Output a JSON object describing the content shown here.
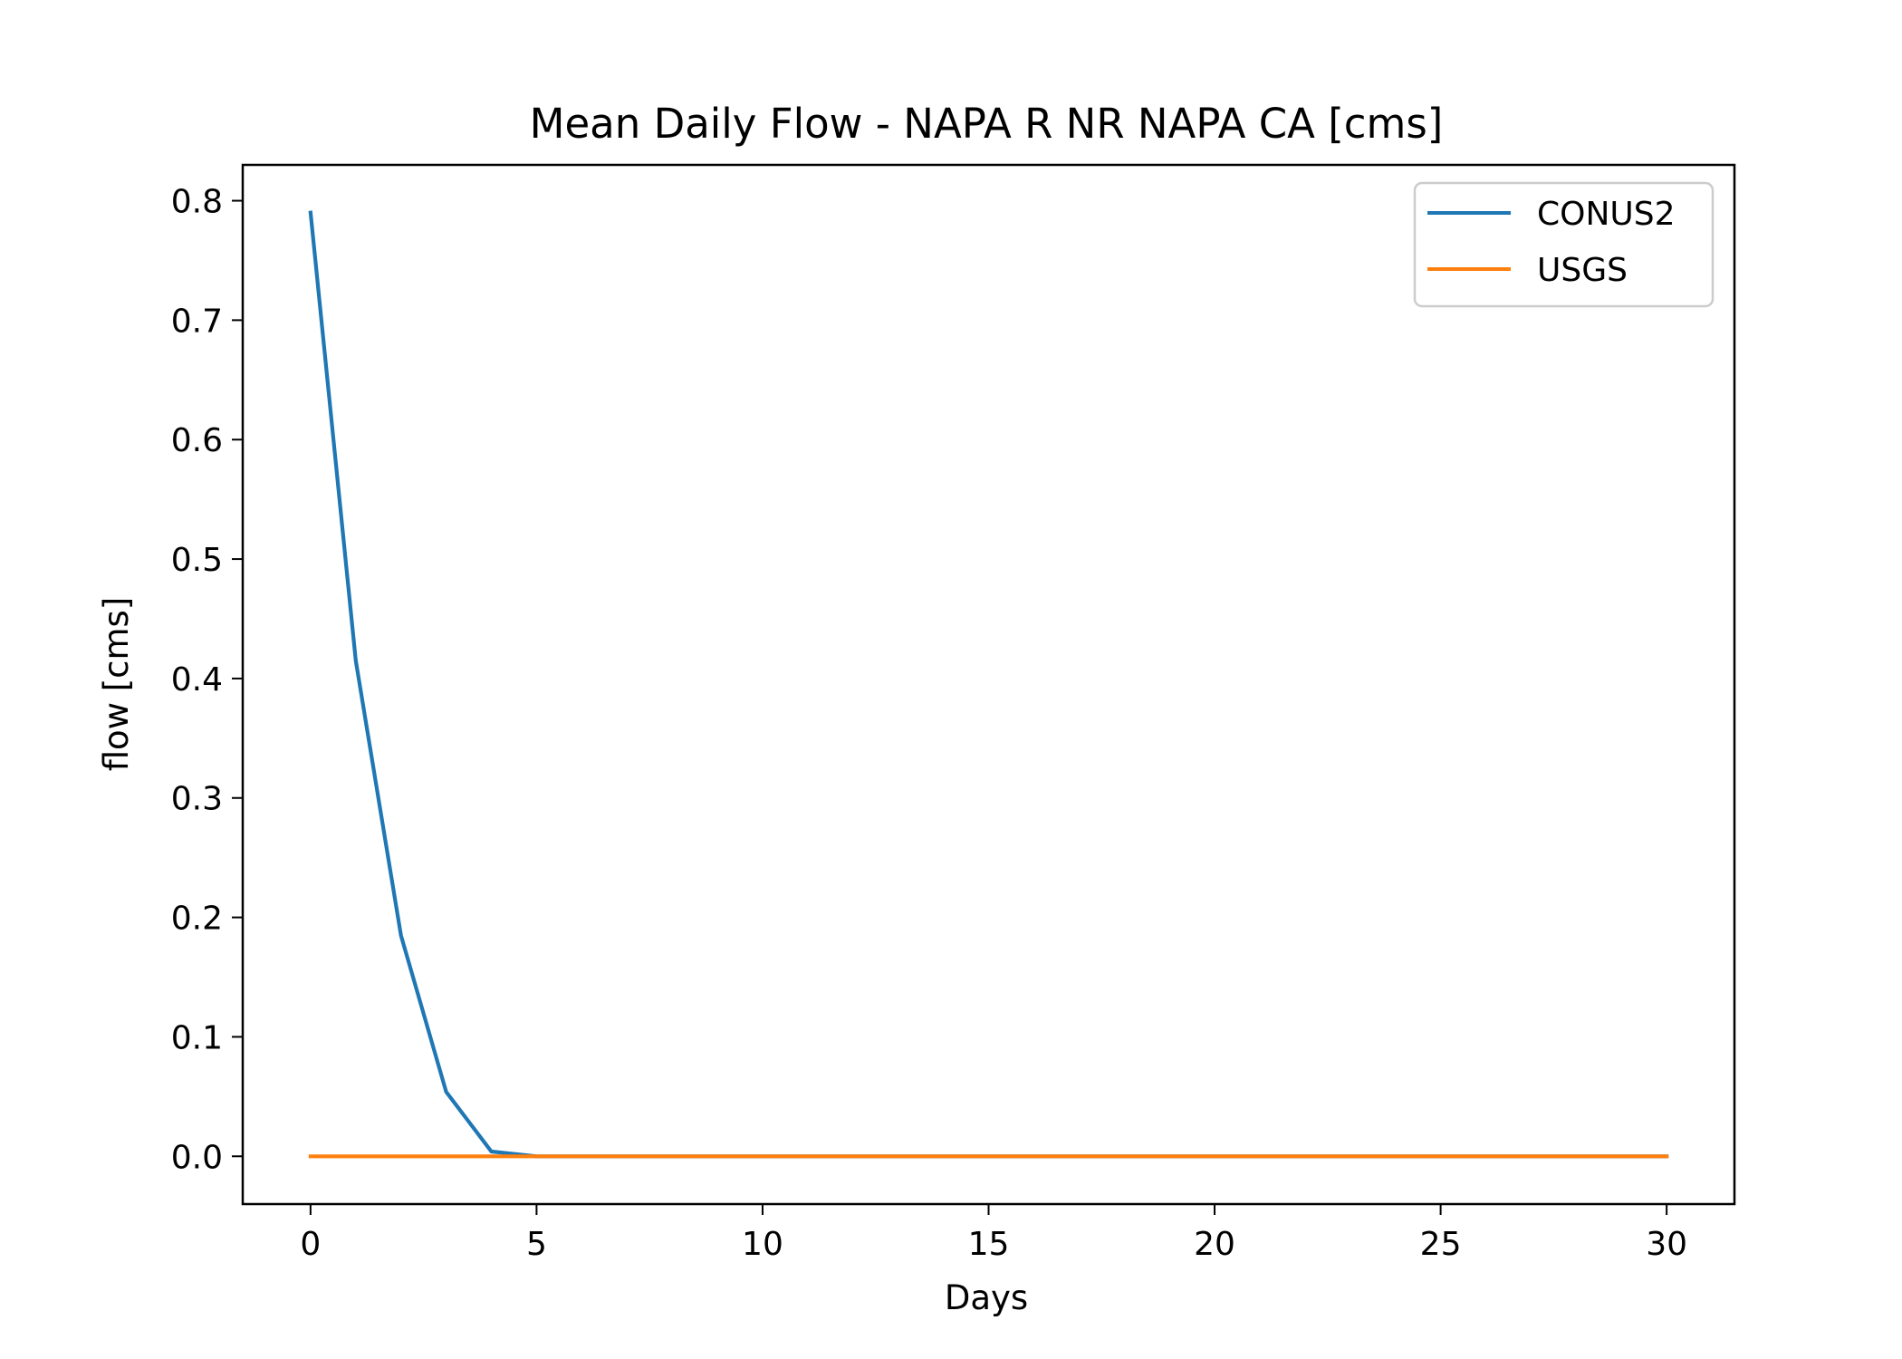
{
  "chart_data": {
    "type": "line",
    "title": "Mean Daily Flow - NAPA R NR NAPA CA [cms]",
    "xlabel": "Days",
    "ylabel": "flow [cms]",
    "xlim": [
      -1.5,
      31.5
    ],
    "ylim": [
      -0.04,
      0.83
    ],
    "xticks": [
      0,
      5,
      10,
      15,
      20,
      25,
      30
    ],
    "xtick_labels": [
      "0",
      "5",
      "10",
      "15",
      "20",
      "25",
      "30"
    ],
    "yticks": [
      0.0,
      0.1,
      0.2,
      0.3,
      0.4,
      0.5,
      0.6,
      0.7,
      0.8
    ],
    "ytick_labels": [
      "0.0",
      "0.1",
      "0.2",
      "0.3",
      "0.4",
      "0.5",
      "0.6",
      "0.7",
      "0.8"
    ],
    "grid": false,
    "legend_position": "top-right",
    "x": [
      0,
      1,
      2,
      3,
      4,
      5,
      6,
      7,
      8,
      9,
      10,
      11,
      12,
      13,
      14,
      15,
      16,
      17,
      18,
      19,
      20,
      21,
      22,
      23,
      24,
      25,
      26,
      27,
      28,
      29,
      30
    ],
    "series": [
      {
        "name": "CONUS2",
        "color": "#1f77b4",
        "values": [
          0.79,
          0.415,
          0.185,
          0.054,
          0.004,
          0,
          0,
          0,
          0,
          0,
          0,
          0,
          0,
          0,
          0,
          0,
          0,
          0,
          0,
          0,
          0,
          0,
          0,
          0,
          0,
          0,
          0,
          0,
          0,
          0,
          0
        ]
      },
      {
        "name": "USGS",
        "color": "#ff7f0e",
        "values": [
          0,
          0,
          0,
          0,
          0,
          0,
          0,
          0,
          0,
          0,
          0,
          0,
          0,
          0,
          0,
          0,
          0,
          0,
          0,
          0,
          0,
          0,
          0,
          0,
          0,
          0,
          0,
          0,
          0,
          0,
          0
        ]
      }
    ]
  }
}
